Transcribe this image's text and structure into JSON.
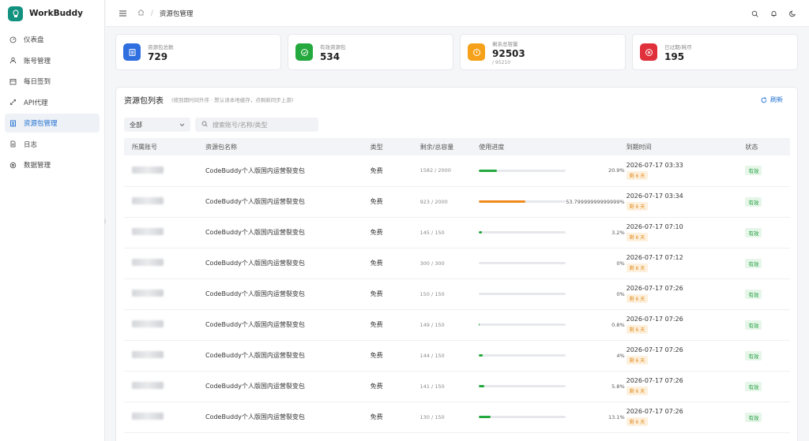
{
  "app": {
    "name": "WorkBuddy"
  },
  "sidebar": {
    "items": [
      {
        "label": "仪表盘",
        "icon": "dashboard-icon",
        "active": false
      },
      {
        "label": "账号管理",
        "icon": "user-icon",
        "active": false
      },
      {
        "label": "每日签到",
        "icon": "calendar-icon",
        "active": false
      },
      {
        "label": "API代理",
        "icon": "link-icon",
        "active": false
      },
      {
        "label": "资源包管理",
        "icon": "document-icon",
        "active": true
      },
      {
        "label": "日志",
        "icon": "file-icon",
        "active": false
      },
      {
        "label": "数据管理",
        "icon": "database-icon",
        "active": false
      }
    ]
  },
  "breadcrumb": {
    "current": "资源包管理"
  },
  "stats": [
    {
      "label": "资源包总数",
      "value": "729",
      "sub": "",
      "color": "#2f6fe0"
    },
    {
      "label": "有效资源包",
      "value": "534",
      "sub": "",
      "color": "#23a93d"
    },
    {
      "label": "剩余总容量",
      "value": "92503",
      "sub": "/ 95210",
      "color": "#f5a11a"
    },
    {
      "label": "已过期/耗尽",
      "value": "195",
      "sub": "",
      "color": "#e0303b"
    }
  ],
  "panel": {
    "title": "资源包列表",
    "hint": "(按到期时间升序 · 默认读本地缓存，点刷新同步上游)",
    "refresh_label": "刷新"
  },
  "filters": {
    "select_value": "全部",
    "search_placeholder": "搜索账号/名称/类型"
  },
  "table": {
    "headers": [
      "所属账号",
      "资源包名称",
      "类型",
      "剩余/总容量",
      "使用进度",
      "到期时间",
      "状态"
    ],
    "rows": [
      {
        "name": "CodeBuddy个人版国内运营裂变包",
        "type": "免费",
        "remaining": "1582 / 2000",
        "progress": 20.9,
        "pct": "20.9%",
        "bar": "#23a93d",
        "expire": "2026-07-17 03:33",
        "days": "剩 6 天",
        "status": "有效"
      },
      {
        "name": "CodeBuddy个人版国内运营裂变包",
        "type": "免费",
        "remaining": "923 / 2000",
        "progress": 53.8,
        "pct": "53.79999999999999%",
        "bar": "#f08a1c",
        "expire": "2026-07-17 03:34",
        "days": "剩 6 天",
        "status": "有效"
      },
      {
        "name": "CodeBuddy个人版国内运营裂变包",
        "type": "免费",
        "remaining": "145 / 150",
        "progress": 3.2,
        "pct": "3.2%",
        "bar": "#23a93d",
        "expire": "2026-07-17 07:10",
        "days": "剩 6 天",
        "status": "有效"
      },
      {
        "name": "CodeBuddy个人版国内运营裂变包",
        "type": "免费",
        "remaining": "300 / 300",
        "progress": 0,
        "pct": "0%",
        "bar": "#23a93d",
        "expire": "2026-07-17 07:12",
        "days": "剩 6 天",
        "status": "有效"
      },
      {
        "name": "CodeBuddy个人版国内运营裂变包",
        "type": "免费",
        "remaining": "150 / 150",
        "progress": 0,
        "pct": "0%",
        "bar": "#23a93d",
        "expire": "2026-07-17 07:26",
        "days": "剩 6 天",
        "status": "有效"
      },
      {
        "name": "CodeBuddy个人版国内运营裂变包",
        "type": "免费",
        "remaining": "149 / 150",
        "progress": 0.8,
        "pct": "0.8%",
        "bar": "#23a93d",
        "expire": "2026-07-17 07:26",
        "days": "剩 6 天",
        "status": "有效"
      },
      {
        "name": "CodeBuddy个人版国内运营裂变包",
        "type": "免费",
        "remaining": "144 / 150",
        "progress": 4,
        "pct": "4%",
        "bar": "#23a93d",
        "expire": "2026-07-17 07:26",
        "days": "剩 6 天",
        "status": "有效"
      },
      {
        "name": "CodeBuddy个人版国内运营裂变包",
        "type": "免费",
        "remaining": "141 / 150",
        "progress": 5.8,
        "pct": "5.8%",
        "bar": "#23a93d",
        "expire": "2026-07-17 07:26",
        "days": "剩 6 天",
        "status": "有效"
      },
      {
        "name": "CodeBuddy个人版国内运营裂变包",
        "type": "免费",
        "remaining": "130 / 150",
        "progress": 13.1,
        "pct": "13.1%",
        "bar": "#23a93d",
        "expire": "2026-07-17 07:26",
        "days": "剩 6 天",
        "status": "有效"
      }
    ]
  }
}
